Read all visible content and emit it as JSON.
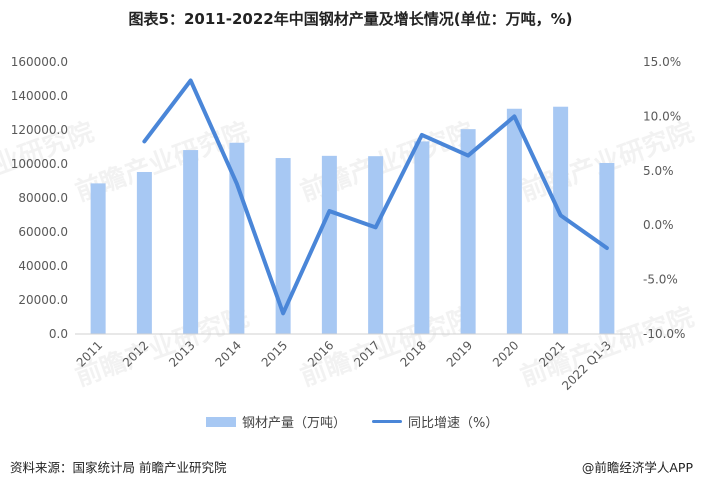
{
  "chart_data": {
    "type": "bar",
    "title": "图表5：2011-2022年中国钢材产量及增长情况(单位：万吨，%)",
    "categories": [
      "2011",
      "2012",
      "2013",
      "2014",
      "2015",
      "2016",
      "2017",
      "2018",
      "2019",
      "2020",
      "2021",
      "2022 Q1-3"
    ],
    "series": [
      {
        "name": "钢材产量（万吨）",
        "type": "bar",
        "axis": "left",
        "color": "#a7c8f3",
        "values": [
          88600,
          95300,
          108200,
          112500,
          103500,
          104800,
          104600,
          113300,
          120500,
          132500,
          133700,
          100600
        ]
      },
      {
        "name": "同比增速（%）",
        "type": "line",
        "axis": "right",
        "color": "#4a86d8",
        "values": [
          null,
          7.7,
          13.3,
          3.8,
          -8.1,
          1.3,
          -0.2,
          8.3,
          6.4,
          10.0,
          0.9,
          -2.1
        ]
      }
    ],
    "left_axis": {
      "min": 0,
      "max": 160000,
      "step": 20000,
      "tick_labels": [
        "0.0",
        "20000.0",
        "40000.0",
        "60000.0",
        "80000.0",
        "100000.0",
        "120000.0",
        "140000.0",
        "160000.0"
      ]
    },
    "right_axis": {
      "min": -10,
      "max": 15,
      "step": 5,
      "tick_labels": [
        "-10.0%",
        "-5.0%",
        "0.0%",
        "5.0%",
        "10.0%",
        "15.0%"
      ]
    },
    "grid": false,
    "legend_position": "bottom-center"
  },
  "watermark": "前瞻产业研究院",
  "footer": {
    "source": "资料来源：国家统计局 前瞻产业研究院",
    "credit": "@前瞻经济学人APP"
  }
}
